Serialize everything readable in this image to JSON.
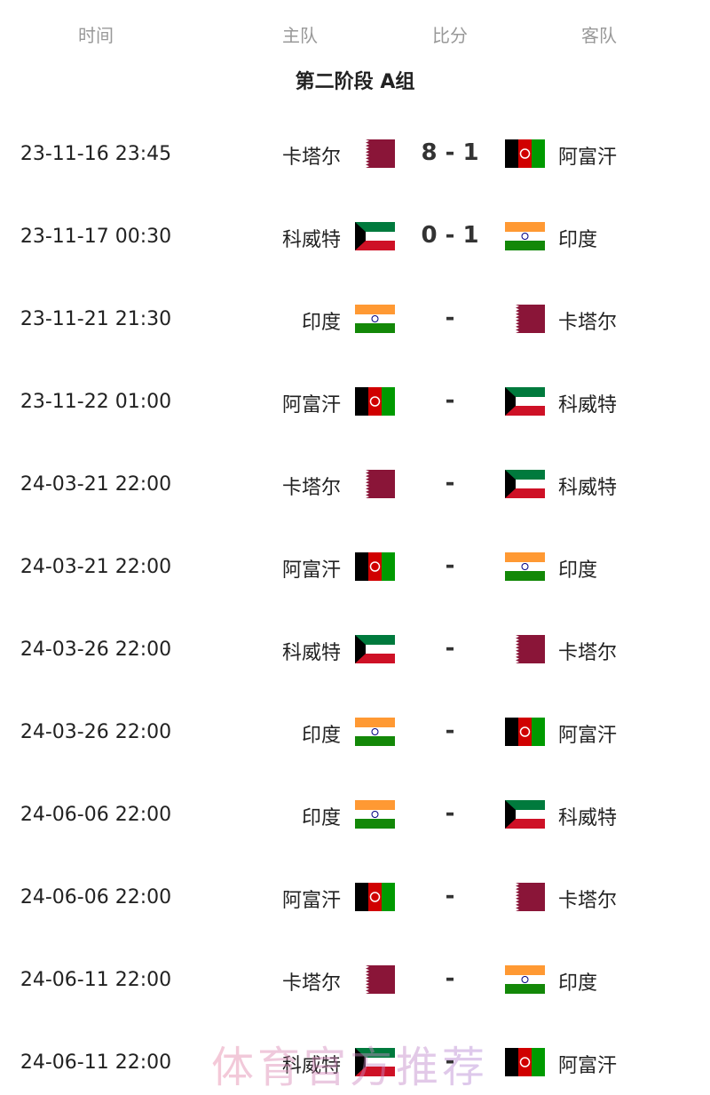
{
  "headers": {
    "time": "时间",
    "home": "主队",
    "score": "比分",
    "away": "客队"
  },
  "group_title": "第二阶段 A组",
  "matches": [
    {
      "time": "23-11-16 23:45",
      "home": "卡塔尔",
      "home_flag": "qatar",
      "score": "8 - 1",
      "away": "阿富汗",
      "away_flag": "afghanistan"
    },
    {
      "time": "23-11-17 00:30",
      "home": "科威特",
      "home_flag": "kuwait",
      "score": "0 - 1",
      "away": "印度",
      "away_flag": "india"
    },
    {
      "time": "23-11-21 21:30",
      "home": "印度",
      "home_flag": "india",
      "score": "-",
      "away": "卡塔尔",
      "away_flag": "qatar"
    },
    {
      "time": "23-11-22 01:00",
      "home": "阿富汗",
      "home_flag": "afghanistan",
      "score": "-",
      "away": "科威特",
      "away_flag": "kuwait"
    },
    {
      "time": "24-03-21 22:00",
      "home": "卡塔尔",
      "home_flag": "qatar",
      "score": "-",
      "away": "科威特",
      "away_flag": "kuwait"
    },
    {
      "time": "24-03-21 22:00",
      "home": "阿富汗",
      "home_flag": "afghanistan",
      "score": "-",
      "away": "印度",
      "away_flag": "india"
    },
    {
      "time": "24-03-26 22:00",
      "home": "科威特",
      "home_flag": "kuwait",
      "score": "-",
      "away": "卡塔尔",
      "away_flag": "qatar"
    },
    {
      "time": "24-03-26 22:00",
      "home": "印度",
      "home_flag": "india",
      "score": "-",
      "away": "阿富汗",
      "away_flag": "afghanistan"
    },
    {
      "time": "24-06-06 22:00",
      "home": "印度",
      "home_flag": "india",
      "score": "-",
      "away": "科威特",
      "away_flag": "kuwait"
    },
    {
      "time": "24-06-06 22:00",
      "home": "阿富汗",
      "home_flag": "afghanistan",
      "score": "-",
      "away": "卡塔尔",
      "away_flag": "qatar"
    },
    {
      "time": "24-06-11 22:00",
      "home": "卡塔尔",
      "home_flag": "qatar",
      "score": "-",
      "away": "印度",
      "away_flag": "india"
    },
    {
      "time": "24-06-11 22:00",
      "home": "科威特",
      "home_flag": "kuwait",
      "score": "-",
      "away": "阿富汗",
      "away_flag": "afghanistan"
    }
  ],
  "watermark": "体育官方推荐",
  "colors": {
    "qatar": "#8a1538",
    "afghanistan_red": "#d00000",
    "afghanistan_green": "#009a00",
    "kuwait_green": "#007a3d",
    "kuwait_red": "#ce1126",
    "india_saffron": "#ff9933",
    "india_green": "#138808"
  }
}
